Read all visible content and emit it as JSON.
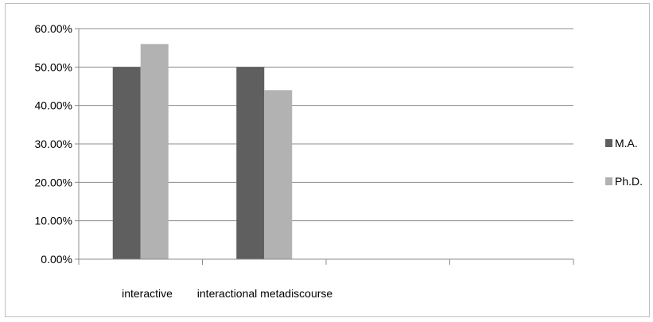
{
  "chart_data": {
    "type": "bar",
    "categories": [
      "interactive",
      "interactional metadiscourse",
      "",
      ""
    ],
    "series": [
      {
        "name": "M.A.",
        "values": [
          0.5,
          0.5,
          null,
          null
        ],
        "color": "#5f5f5f"
      },
      {
        "name": "Ph.D.",
        "values": [
          0.56,
          0.44,
          null,
          null
        ],
        "color": "#b2b2b2"
      }
    ],
    "ylim": [
      0,
      0.6
    ],
    "yticks": [
      0,
      0.1,
      0.2,
      0.3,
      0.4,
      0.5,
      0.6
    ],
    "ytick_labels": [
      "0.00%",
      "10.00%",
      "20.00%",
      "30.00%",
      "40.00%",
      "50.00%",
      "60.00%"
    ],
    "grid": true,
    "legend_position": "right",
    "title": "",
    "xlabel": "",
    "ylabel": ""
  }
}
